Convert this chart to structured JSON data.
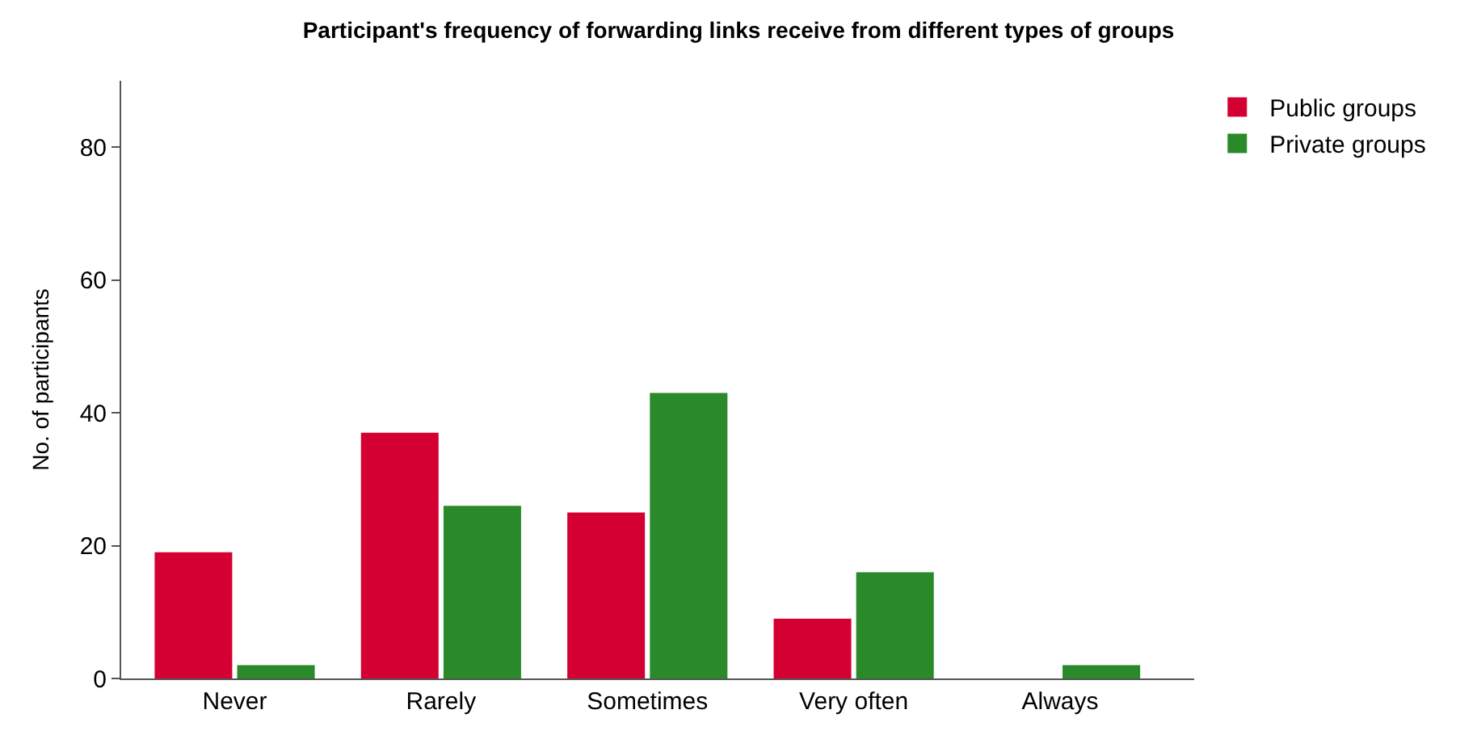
{
  "chart_data": {
    "type": "bar",
    "title": "Participant's frequency of forwarding links receive from different types of groups",
    "ylabel": "No. of participants",
    "categories": [
      "Never",
      "Rarely",
      "Sometimes",
      "Very often",
      "Always"
    ],
    "series": [
      {
        "name": "Public groups",
        "color": "#d50032",
        "values": [
          19,
          37,
          25,
          9,
          0
        ]
      },
      {
        "name": "Private groups",
        "color": "#2a8a2a",
        "values": [
          2,
          26,
          43,
          16,
          2
        ]
      }
    ],
    "ylim": [
      0,
      90
    ],
    "yticks": [
      0,
      20,
      40,
      60,
      80
    ],
    "legend": "top right"
  }
}
